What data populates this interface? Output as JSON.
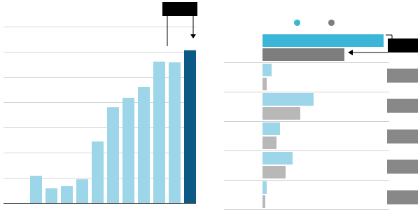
{
  "chart_data": [
    {
      "type": "bar",
      "categories": [
        null,
        null,
        null,
        null,
        null,
        null,
        null,
        null,
        null,
        null,
        null
      ],
      "values": [
        1.08,
        0.58,
        0.67,
        0.94,
        2.44,
        3.8,
        4.17,
        4.61,
        5.61,
        5.58,
        6.06
      ],
      "colors": [
        "#9dd6e8",
        "#9dd6e8",
        "#9dd6e8",
        "#9dd6e8",
        "#9dd6e8",
        "#9dd6e8",
        "#9dd6e8",
        "#9dd6e8",
        "#9dd6e8",
        "#9dd6e8",
        "#0b5a86"
      ],
      "ylim": [
        0,
        7
      ],
      "yticks": [
        0,
        1,
        2,
        3,
        4,
        5,
        6,
        7
      ],
      "grid": true,
      "tick_labels": false
    },
    {
      "type": "bar",
      "orientation": "horizontal",
      "categories": [
        null,
        null,
        null,
        null,
        null,
        null
      ],
      "series": [
        {
          "color": "#3cb6d6",
          "colors": [
            "#3cb6d6",
            "#9dd6e8",
            "#9dd6e8",
            "#9dd6e8",
            "#9dd6e8",
            "#9dd6e8"
          ],
          "values": [
            173,
            13,
            73,
            25,
            43,
            6
          ]
        },
        {
          "color": "#7d7d7d",
          "colors": [
            "#7d7d7d",
            "#b8b8b8",
            "#b8b8b8",
            "#b8b8b8",
            "#b8b8b8",
            "#b8b8b8"
          ],
          "values": [
            117,
            6,
            54,
            20,
            33,
            4
          ]
        }
      ],
      "xlim": [
        0,
        180
      ],
      "tick_labels": false,
      "legend": "top"
    }
  ]
}
